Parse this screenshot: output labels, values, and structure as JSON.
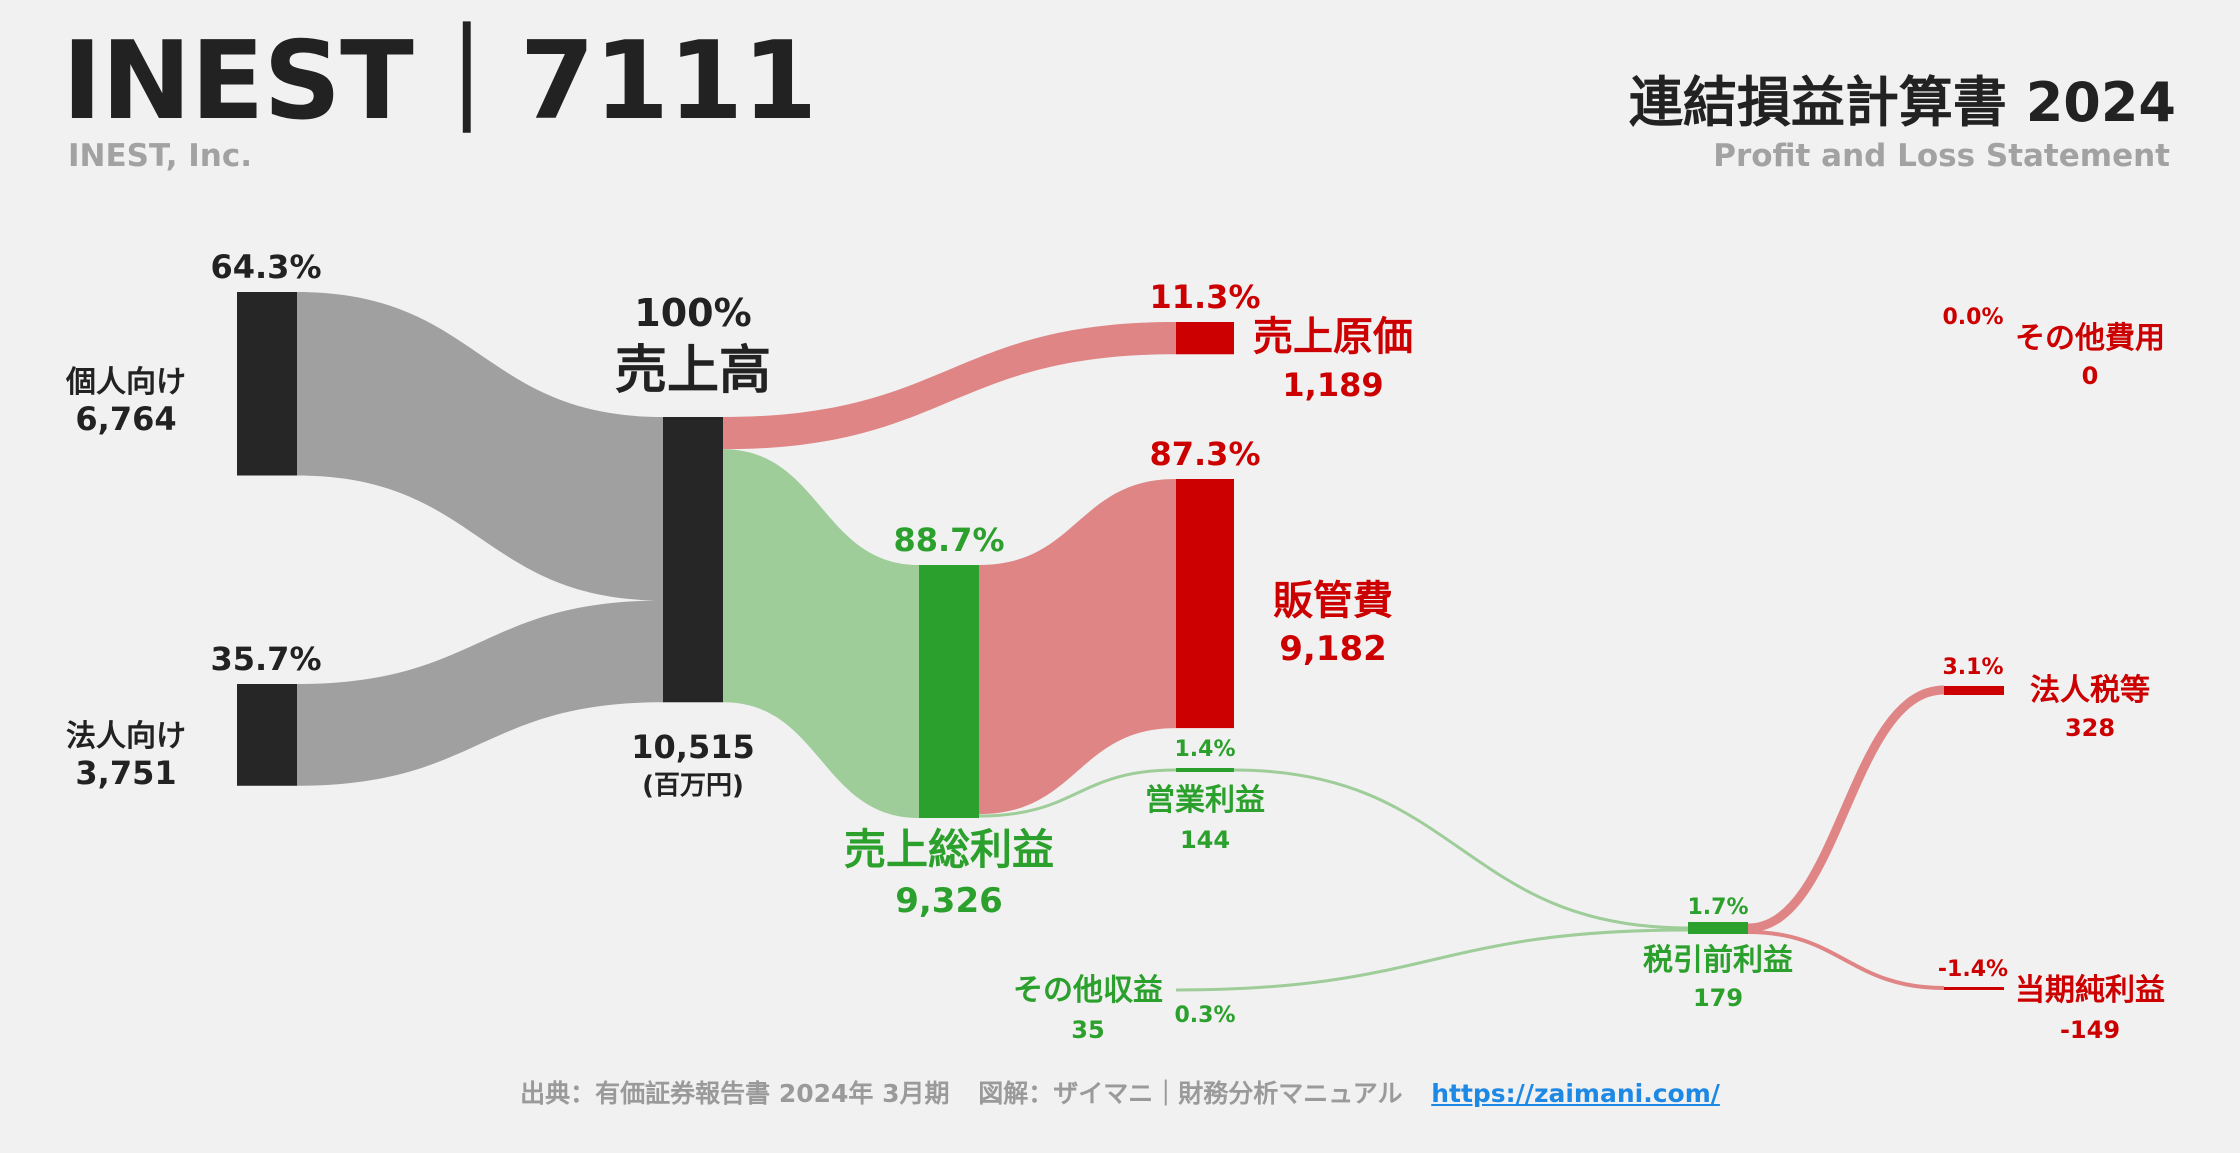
{
  "header": {
    "ticker_title": "INEST｜7111",
    "company_name": "INEST, Inc.",
    "statement_title": "連結損益計算書 2024",
    "statement_subtitle": "Profit and Loss Statement"
  },
  "footer": {
    "source": "出典：有価証券報告書 2024年 3月期",
    "credit": "図解：ザイマニ｜財務分析マニュアル",
    "url": "https://zaimani.com/"
  },
  "colors": {
    "neutral_node": "#262626",
    "neutral_flow": "#a0a0a0",
    "profit_node": "#2ca02c",
    "profit_flow": "#9ecd9a",
    "profit_text": "#2ca02c",
    "cost_node": "#cc0000",
    "cost_flow": "#e08585",
    "cost_text": "#cc0000",
    "neutral_text": "#222222"
  },
  "chart_data": {
    "type": "sankey",
    "unit": "(百万円)",
    "nodes": [
      {
        "id": "kojin",
        "name": "個人向け",
        "value": 6764,
        "value_label": "6,764",
        "pct_label": "64.3%",
        "kind": "neutral"
      },
      {
        "id": "hojin",
        "name": "法人向け",
        "value": 3751,
        "value_label": "3,751",
        "pct_label": "35.7%",
        "kind": "neutral"
      },
      {
        "id": "revenue",
        "name": "売上高",
        "value": 10515,
        "value_label": "10,515",
        "pct_label": "100%",
        "kind": "neutral"
      },
      {
        "id": "cogs",
        "name": "売上原価",
        "value": 1189,
        "value_label": "1,189",
        "pct_label": "11.3%",
        "kind": "cost"
      },
      {
        "id": "gross",
        "name": "売上総利益",
        "value": 9326,
        "value_label": "9,326",
        "pct_label": "88.7%",
        "kind": "profit"
      },
      {
        "id": "sga",
        "name": "販管費",
        "value": 9182,
        "value_label": "9,182",
        "pct_label": "87.3%",
        "kind": "cost"
      },
      {
        "id": "operating",
        "name": "営業利益",
        "value": 144,
        "value_label": "144",
        "pct_label": "1.4%",
        "kind": "profit"
      },
      {
        "id": "other_income",
        "name": "その他収益",
        "value": 35,
        "value_label": "35",
        "pct_label": "0.3%",
        "kind": "profit"
      },
      {
        "id": "other_expense",
        "name": "その他費用",
        "value": 0,
        "value_label": "0",
        "pct_label": "0.0%",
        "kind": "cost"
      },
      {
        "id": "pretax",
        "name": "税引前利益",
        "value": 179,
        "value_label": "179",
        "pct_label": "1.7%",
        "kind": "profit"
      },
      {
        "id": "tax",
        "name": "法人税等",
        "value": 328,
        "value_label": "328",
        "pct_label": "3.1%",
        "kind": "cost"
      },
      {
        "id": "net",
        "name": "当期純利益",
        "value": -149,
        "value_label": "-149",
        "pct_label": "-1.4%",
        "kind": "cost"
      }
    ],
    "links": [
      {
        "source": "kojin",
        "target": "revenue",
        "value": 6764
      },
      {
        "source": "hojin",
        "target": "revenue",
        "value": 3751
      },
      {
        "source": "revenue",
        "target": "cogs",
        "value": 1189
      },
      {
        "source": "revenue",
        "target": "gross",
        "value": 9326
      },
      {
        "source": "gross",
        "target": "sga",
        "value": 9182
      },
      {
        "source": "gross",
        "target": "operating",
        "value": 144
      },
      {
        "source": "operating",
        "target": "pretax",
        "value": 144
      },
      {
        "source": "other_income",
        "target": "pretax",
        "value": 35
      },
      {
        "source": "pretax",
        "target": "tax",
        "value": 328
      },
      {
        "source": "pretax",
        "target": "net",
        "value": -149
      }
    ]
  }
}
